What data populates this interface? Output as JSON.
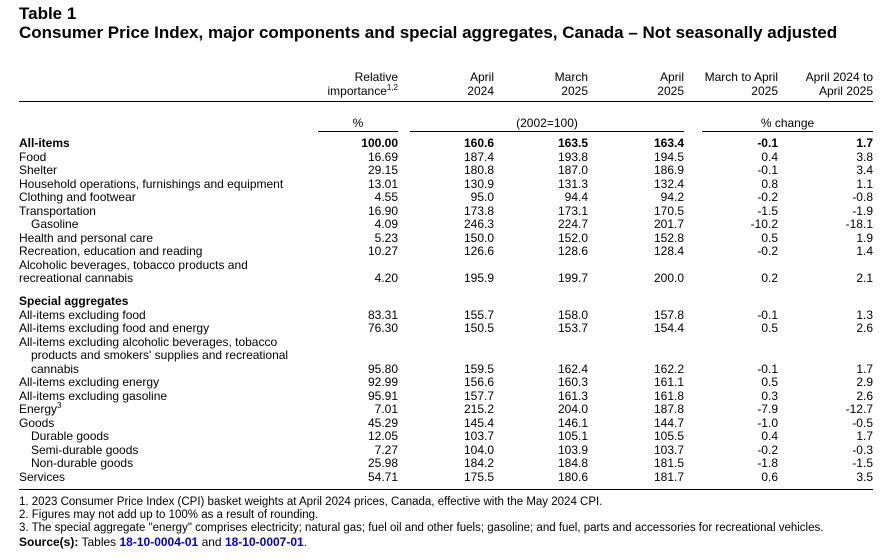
{
  "table_label": "Table 1",
  "title": "Consumer Price Index, major components and special aggregates, Canada – Not seasonally adjusted",
  "columns": [
    {
      "line1": "Relative",
      "line2": "importance",
      "sup": "1,2"
    },
    {
      "line1": "April",
      "line2": "2024"
    },
    {
      "line1": "March",
      "line2": "2025"
    },
    {
      "line1": "April",
      "line2": "2025"
    },
    {
      "line1": "March to April",
      "line2": "2025"
    },
    {
      "line1": "April 2024 to",
      "line2": "April 2025"
    }
  ],
  "units": {
    "percent": "%",
    "index": "(2002=100)",
    "change": "% change"
  },
  "sections": [
    {
      "heading": "",
      "rows": [
        {
          "label": "All-items",
          "bold": true,
          "indent": false,
          "values": [
            "100.00",
            "160.6",
            "163.5",
            "163.4",
            "-0.1",
            "1.7"
          ]
        },
        {
          "label": "Food",
          "values": [
            "16.69",
            "187.4",
            "193.8",
            "194.5",
            "0.4",
            "3.8"
          ]
        },
        {
          "label": "Shelter",
          "values": [
            "29.15",
            "180.8",
            "187.0",
            "186.9",
            "-0.1",
            "3.4"
          ]
        },
        {
          "label": "Household operations, furnishings and equipment",
          "values": [
            "13.01",
            "130.9",
            "131.3",
            "132.4",
            "0.8",
            "1.1"
          ]
        },
        {
          "label": "Clothing and footwear",
          "values": [
            "4.55",
            "95.0",
            "94.4",
            "94.2",
            "-0.2",
            "-0.8"
          ]
        },
        {
          "label": "Transportation",
          "values": [
            "16.90",
            "173.8",
            "173.1",
            "170.5",
            "-1.5",
            "-1.9"
          ]
        },
        {
          "label": "Gasoline",
          "indent": true,
          "values": [
            "4.09",
            "246.3",
            "224.7",
            "201.7",
            "-10.2",
            "-18.1"
          ]
        },
        {
          "label": "Health and personal care",
          "values": [
            "5.23",
            "150.0",
            "152.0",
            "152.8",
            "0.5",
            "1.9"
          ]
        },
        {
          "label": "Recreation, education and reading",
          "values": [
            "10.27",
            "126.6",
            "128.6",
            "128.4",
            "-0.2",
            "1.4"
          ]
        },
        {
          "label_lines": [
            "Alcoholic beverages, tobacco products and",
            "recreational cannabis"
          ],
          "values": [
            "4.20",
            "195.9",
            "199.7",
            "200.0",
            "0.2",
            "2.1"
          ]
        }
      ]
    },
    {
      "heading": "Special aggregates",
      "rows": [
        {
          "label": "All-items excluding food",
          "values": [
            "83.31",
            "155.7",
            "158.0",
            "157.8",
            "-0.1",
            "1.3"
          ]
        },
        {
          "label": "All-items excluding food and energy",
          "values": [
            "76.30",
            "150.5",
            "153.7",
            "154.4",
            "0.5",
            "2.6"
          ]
        },
        {
          "label_lines": [
            "All-items excluding alcoholic beverages, tobacco",
            "products and smokers' supplies and recreational",
            "cannabis"
          ],
          "values": [
            "95.80",
            "159.5",
            "162.4",
            "162.2",
            "-0.1",
            "1.7"
          ]
        },
        {
          "label": "All-items excluding energy",
          "values": [
            "92.99",
            "156.6",
            "160.3",
            "161.1",
            "0.5",
            "2.9"
          ]
        },
        {
          "label": "All-items excluding gasoline",
          "values": [
            "95.91",
            "157.7",
            "161.3",
            "161.8",
            "0.3",
            "2.6"
          ]
        },
        {
          "label": "Energy",
          "sup": "3",
          "values": [
            "7.01",
            "215.2",
            "204.0",
            "187.8",
            "-7.9",
            "-12.7"
          ]
        },
        {
          "label": "Goods",
          "values": [
            "45.29",
            "145.4",
            "146.1",
            "144.7",
            "-1.0",
            "-0.5"
          ]
        },
        {
          "label": "Durable goods",
          "indent": true,
          "values": [
            "12.05",
            "103.7",
            "105.1",
            "105.5",
            "0.4",
            "1.7"
          ]
        },
        {
          "label": "Semi-durable goods",
          "indent": true,
          "values": [
            "7.27",
            "104.0",
            "103.9",
            "103.7",
            "-0.2",
            "-0.3"
          ]
        },
        {
          "label": "Non-durable goods",
          "indent": true,
          "values": [
            "25.98",
            "184.2",
            "184.8",
            "181.5",
            "-1.8",
            "-1.5"
          ]
        },
        {
          "label": "Services",
          "values": [
            "54.71",
            "175.5",
            "180.6",
            "181.7",
            "0.6",
            "3.5"
          ]
        }
      ]
    }
  ],
  "footnotes": [
    "1.  2023 Consumer Price Index (CPI) basket weights at April 2024 prices, Canada, effective with the May 2024 CPI.",
    "2.  Figures may not add up to 100% as a result of rounding.",
    "3.  The special aggregate \"energy\" comprises electricity; natural gas; fuel oil and other fuels; gasoline; and fuel, parts and accessories for recreational vehicles."
  ],
  "source": {
    "label": "Source(s):",
    "text": "Tables",
    "link1": "18-10-0004-01",
    "conj": "and",
    "link2": "18-10-0007-01",
    "end": "."
  },
  "colors": {
    "link": "#0000cc",
    "text": "#000000",
    "background": "#ffffff"
  }
}
